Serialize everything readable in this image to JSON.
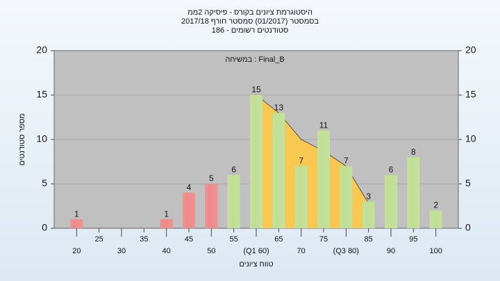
{
  "chart_data": {
    "type": "bar",
    "title": [
      "היסטוגרמת ציונים בקורס - פיסיקה 2ממ",
      "בסמסטר  (01/2017)  סמסטר חורף 2017/18",
      "סטודנטים רשומים - 186"
    ],
    "annotation": "במשיחה : Final_B",
    "y_label": "מספר סטודנטים",
    "x_label": "טווח ציונים",
    "x": [
      20,
      25,
      30,
      35,
      40,
      45,
      50,
      55,
      60,
      65,
      70,
      75,
      80,
      85,
      90,
      95,
      100
    ],
    "values": [
      1,
      0,
      0,
      0,
      1,
      4,
      5,
      6,
      15,
      13,
      7,
      11,
      7,
      3,
      6,
      8,
      2
    ],
    "colors": [
      "#e02828",
      "#e02828",
      "#e02828",
      "#e02828",
      "#e02828",
      "#e02828",
      "#e02828",
      "#8cc43c",
      "#8cc43c",
      "#8cc43c",
      "#8cc43c",
      "#8cc43c",
      "#8cc43c",
      "#8cc43c",
      "#8cc43c",
      "#8cc43c",
      "#8cc43c"
    ],
    "area": {
      "x": [
        60,
        65,
        70,
        75,
        80,
        85
      ],
      "values": [
        15,
        13,
        10,
        8.7,
        7,
        2.8
      ],
      "color": "#f8c850"
    },
    "xlim": [
      15,
      105
    ],
    "xticks": [
      20,
      25,
      30,
      35,
      40,
      45,
      50,
      55,
      {
        "value": 60,
        "label": "(Q1 60)"
      },
      65,
      70,
      75,
      {
        "value": 80,
        "label": "(Q3 80)"
      },
      85,
      90,
      95,
      100
    ],
    "ylim": [
      0,
      20
    ],
    "yticks": [
      0,
      5,
      10,
      15,
      20
    ],
    "y2lim": [
      0,
      20
    ],
    "y2ticks": [
      0,
      5,
      10,
      15,
      20
    ],
    "grid": true
  }
}
